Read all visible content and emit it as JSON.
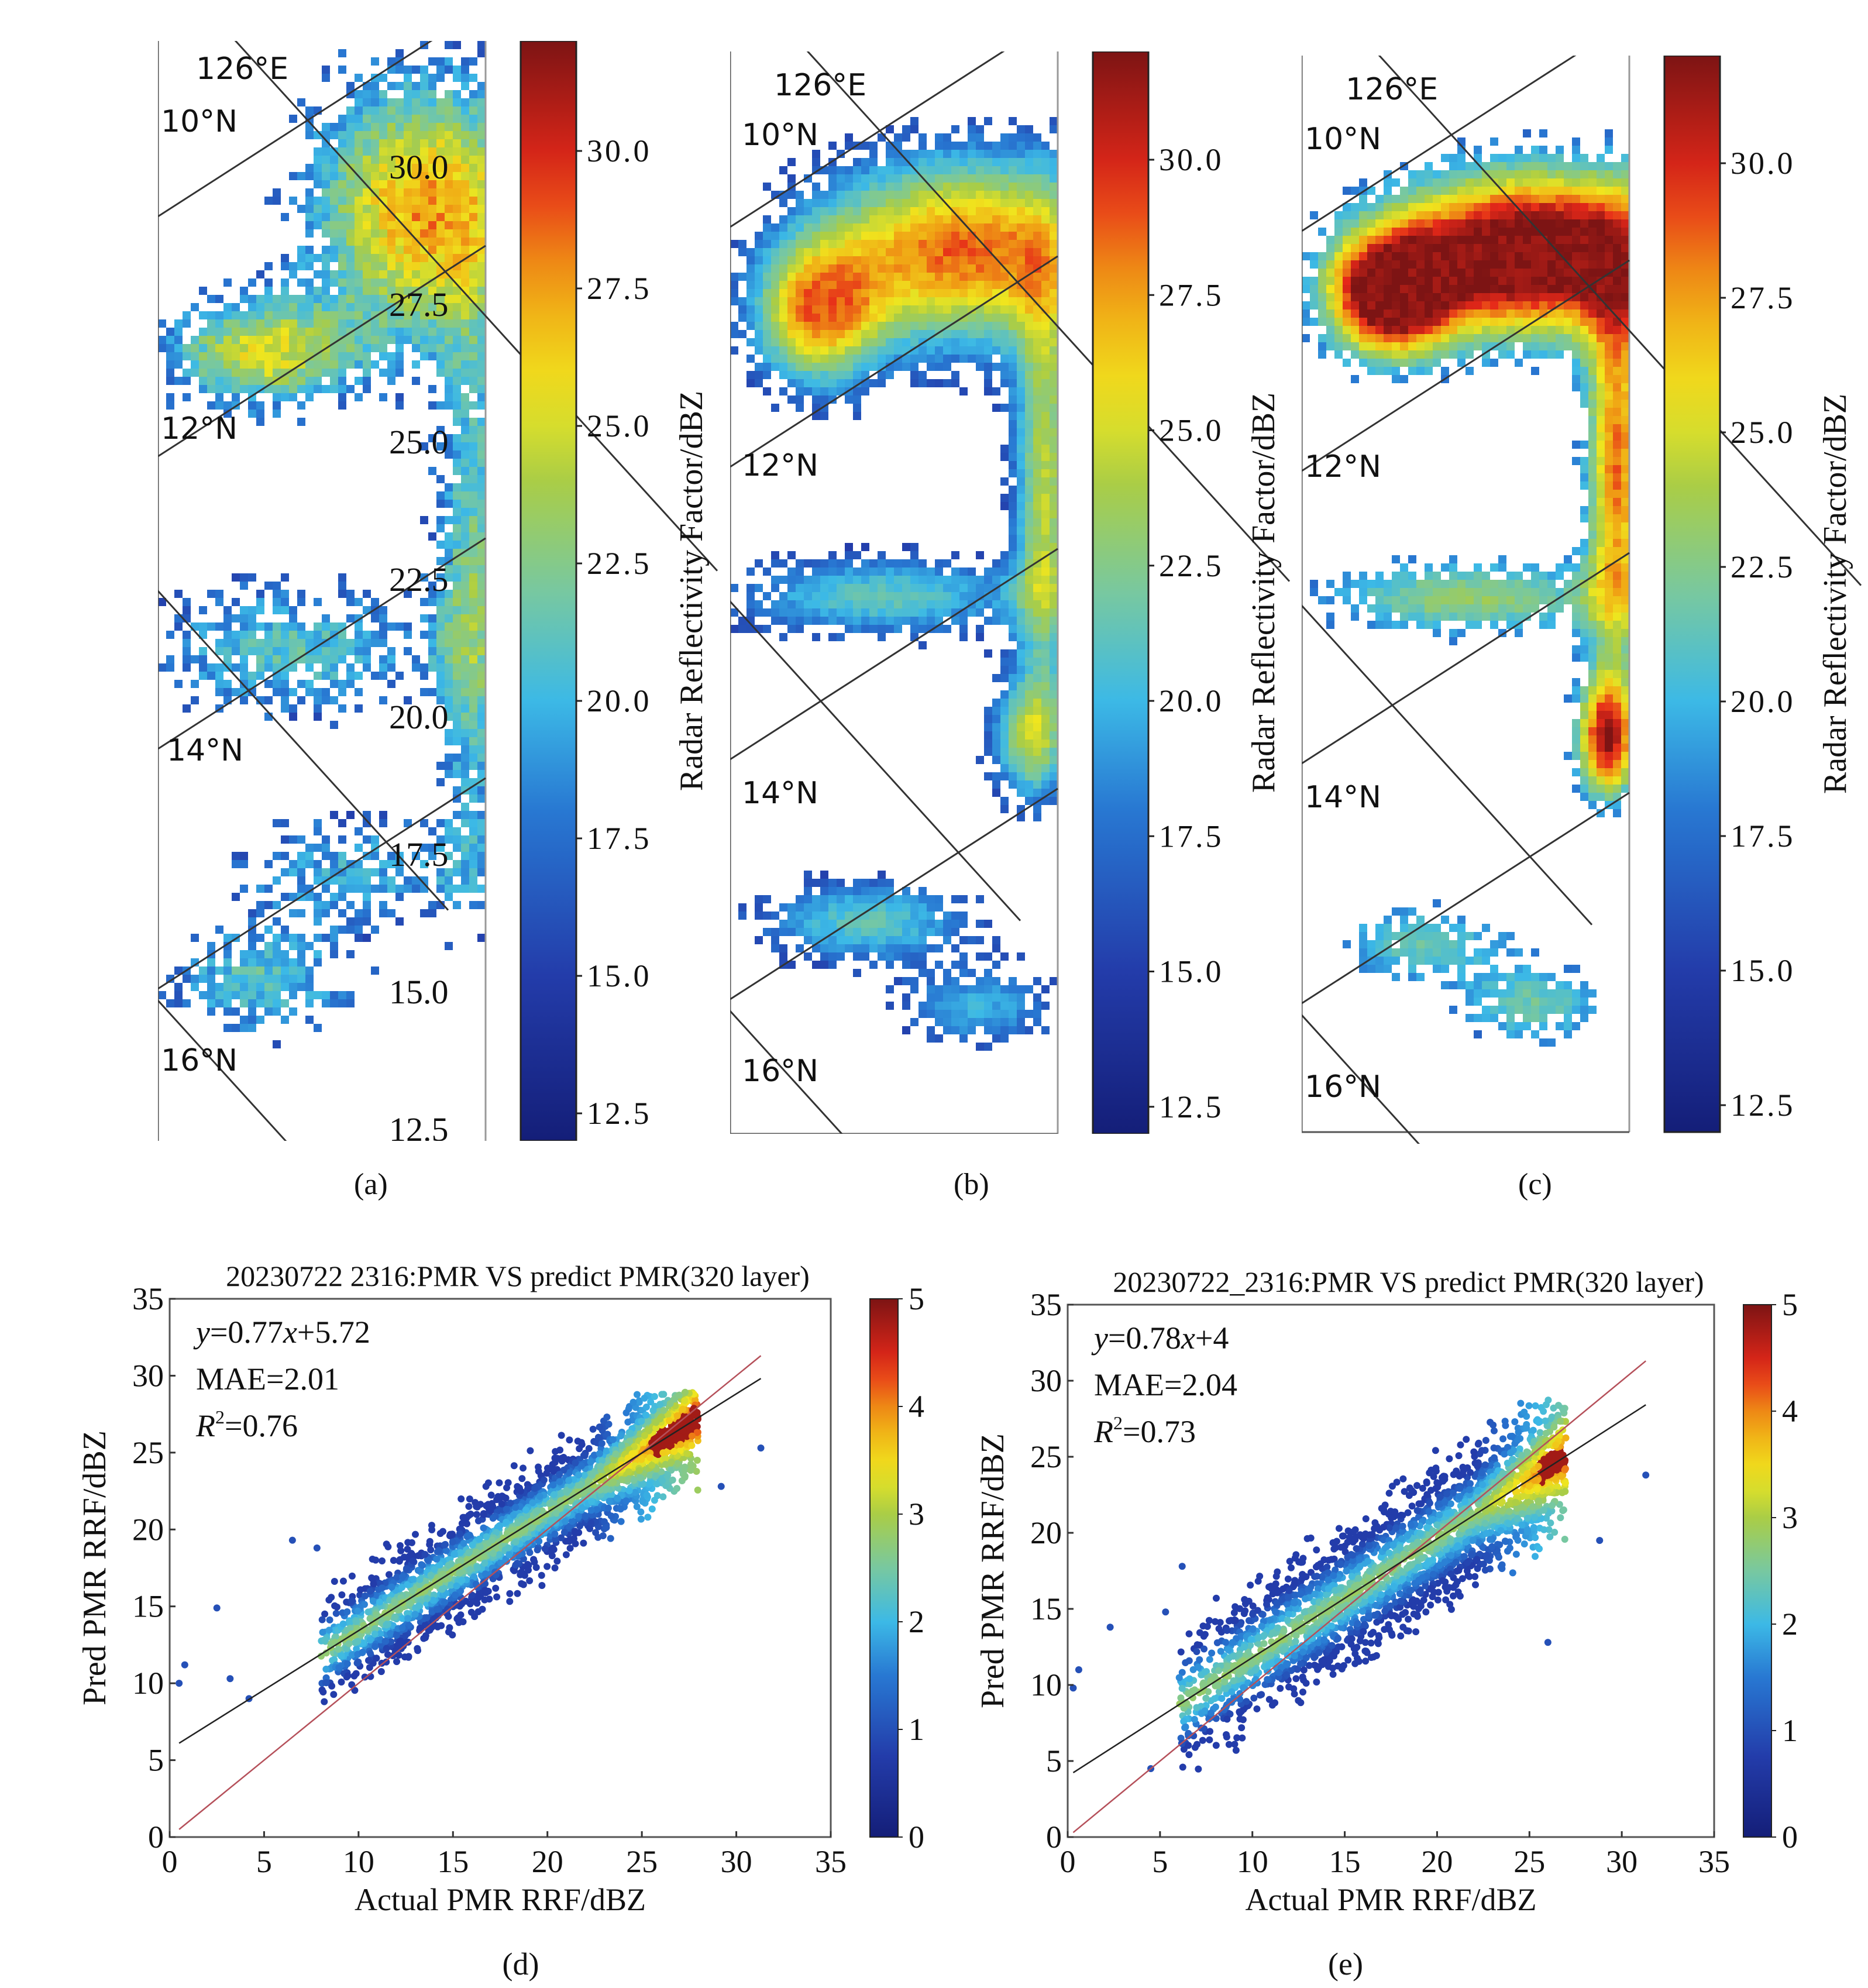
{
  "chart_data": [
    {
      "panel": "(a)",
      "type": "heatmap",
      "title": "",
      "colorbar": {
        "label": "Radar Reflectivity Factor/dBZ",
        "ticks": [
          "30.0",
          "27.5",
          "25.0",
          "22.5",
          "20.0",
          "17.5",
          "15.0",
          "12.5"
        ],
        "range": [
          12.0,
          32.0
        ]
      },
      "graticule_labels": [
        "126°E",
        "10°N",
        "12°N",
        "14°N",
        "16°N"
      ],
      "overlay_labels": [
        "30.0",
        "27.5",
        "25.0",
        "22.5",
        "20.0",
        "17.5",
        "15.0",
        "12.5"
      ],
      "description": "Actual PMR reflectivity swath, scattered yellow-orange rainband, max ~28 dBZ"
    },
    {
      "panel": "(b)",
      "type": "heatmap",
      "title": "",
      "colorbar": {
        "label": "Radar Reflectivity Factor/dBZ",
        "ticks": [
          "30.0",
          "27.5",
          "25.0",
          "22.5",
          "20.0",
          "17.5",
          "15.0",
          "12.5"
        ],
        "range": [
          12.0,
          32.0
        ]
      },
      "graticule_labels": [
        "126°E",
        "10°N",
        "12°N",
        "14°N",
        "16°N"
      ],
      "description": "Predicted reflectivity, broad orange band ~27 dBZ around eye"
    },
    {
      "panel": "(c)",
      "type": "heatmap",
      "title": "",
      "colorbar": {
        "label": "Radar Reflectivity Factor/dBZ",
        "ticks": [
          "30.0",
          "27.5",
          "25.0",
          "22.5",
          "20.0",
          "17.5",
          "15.0",
          "12.5"
        ],
        "range": [
          12.0,
          32.0
        ]
      },
      "graticule_labels": [
        "126°E",
        "10°N",
        "12°N",
        "14°N",
        "16°N"
      ],
      "description": "Predicted reflectivity, intense red eyewall ~30 dBZ"
    },
    {
      "panel": "(d)",
      "type": "scatter",
      "title": "20230722 2316:PMR VS predict PMR(320 layer)",
      "xlabel": "Actual PMR RRF/dBZ",
      "ylabel": "Pred PMR RRF/dBZ",
      "xlim": [
        0,
        35
      ],
      "ylim": [
        0,
        35
      ],
      "xticks": [
        "0",
        "5",
        "10",
        "15",
        "20",
        "25",
        "30",
        "35"
      ],
      "yticks": [
        "0",
        "5",
        "10",
        "15",
        "20",
        "25",
        "30",
        "35"
      ],
      "fit": {
        "slope": 0.77,
        "intercept": 5.72,
        "x_range": [
          0.5,
          31.3
        ]
      },
      "identity_line": {
        "x_range": [
          0.5,
          31.3
        ]
      },
      "stats": {
        "equation": "=0.77",
        "equation_tail": "+5.72",
        "mae": "MAE=2.01",
        "r2": "=0.76"
      },
      "colorbar": {
        "ticks": [
          "5",
          "4",
          "3",
          "2",
          "1",
          "0"
        ],
        "range": [
          0,
          5
        ]
      },
      "cluster": {
        "x_center_range": [
          8,
          28
        ],
        "spread": 2.4,
        "outliers": [
          [
            0.5,
            10.0
          ],
          [
            0.8,
            11.2
          ],
          [
            2.5,
            14.9
          ],
          [
            3.2,
            10.3
          ],
          [
            4.2,
            9.0
          ],
          [
            6.5,
            19.3
          ],
          [
            7.8,
            18.8
          ],
          [
            29.2,
            22.8
          ],
          [
            31.3,
            25.3
          ]
        ]
      }
    },
    {
      "panel": "(e)",
      "type": "scatter",
      "title": "20230722_2316:PMR VS predict PMR(320 layer)",
      "xlabel": "Actual PMR RRF/dBZ",
      "ylabel": "Pred PMR RRF/dBZ",
      "xlim": [
        0,
        35
      ],
      "ylim": [
        0,
        35
      ],
      "xticks": [
        "0",
        "5",
        "10",
        "15",
        "20",
        "25",
        "30",
        "35"
      ],
      "yticks": [
        "0",
        "5",
        "10",
        "15",
        "20",
        "25",
        "30",
        "35"
      ],
      "fit": {
        "slope": 0.78,
        "intercept": 4.0,
        "x_range": [
          0.3,
          31.3
        ]
      },
      "identity_line": {
        "x_range": [
          0.3,
          31.3
        ]
      },
      "stats": {
        "equation": "=0.78",
        "equation_tail": "+4",
        "mae": "MAE=2.04",
        "r2": "=0.73"
      },
      "colorbar": {
        "ticks": [
          "5",
          "4",
          "3",
          "2",
          "1",
          "0"
        ],
        "range": [
          0,
          5
        ]
      },
      "cluster": {
        "x_center_range": [
          6,
          27
        ],
        "spread": 3.0,
        "outliers": [
          [
            0.3,
            9.8
          ],
          [
            0.6,
            11.0
          ],
          [
            2.3,
            13.8
          ],
          [
            4.5,
            4.5
          ],
          [
            5.3,
            14.8
          ],
          [
            6.2,
            17.8
          ],
          [
            26.0,
            12.8
          ],
          [
            28.8,
            19.5
          ],
          [
            31.3,
            23.8
          ]
        ]
      }
    }
  ],
  "captions": {
    "a": "(a)",
    "b": "(b)",
    "c": "(c)",
    "d": "(d)",
    "e": "(e)"
  },
  "labels": {
    "y_italic": "y",
    "x_italic": "x",
    "r_italic": "R",
    "r_sup": "2"
  }
}
